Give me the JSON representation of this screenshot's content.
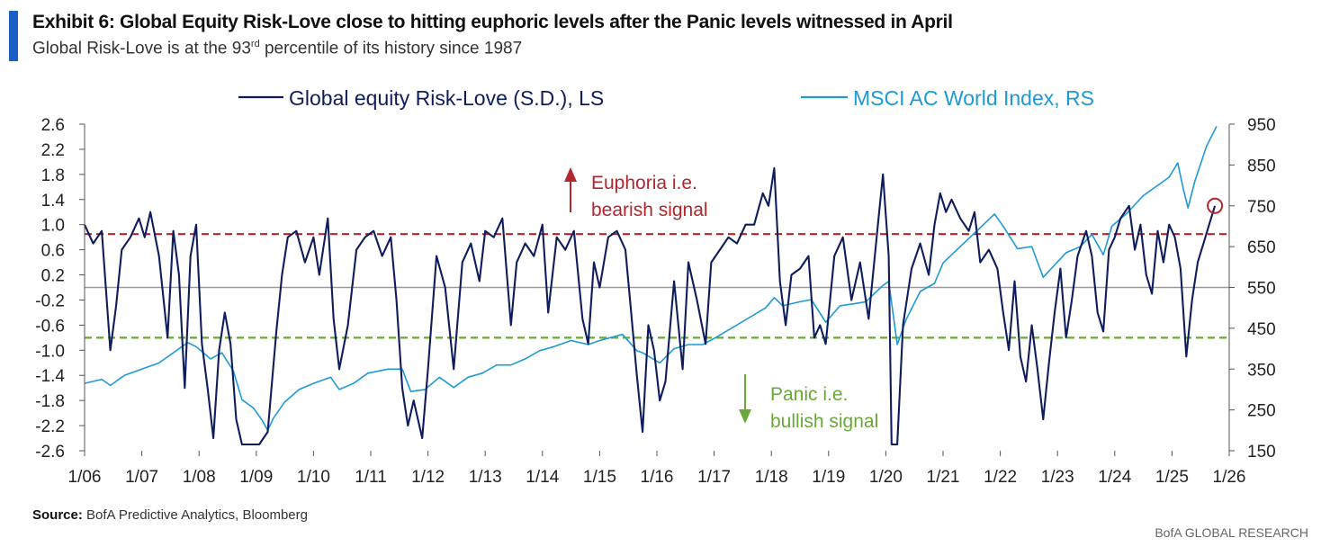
{
  "colors": {
    "accent": "#1a5fc8",
    "riskLove": "#0f1d5c",
    "msci": "#1d9ad6",
    "euphoria": "#b3262c",
    "panic": "#6aa83a",
    "zero": "#9a9a9a"
  },
  "header": {
    "title": "Exhibit 6: Global Equity Risk-Love close to hitting euphoric levels after the Panic levels witnessed in April",
    "subtitle_pre": "Global Risk-Love is at the 93",
    "subtitle_sup": "rd",
    "subtitle_post": " percentile of its history since 1987"
  },
  "footer": {
    "source_label": "Source:",
    "source_text": " BofA Predictive Analytics, Bloomberg",
    "brand": "BofA GLOBAL RESEARCH"
  },
  "chart_data": {
    "type": "line",
    "x_tick_labels": [
      "1/06",
      "1/07",
      "1/08",
      "1/09",
      "1/10",
      "1/11",
      "1/12",
      "1/13",
      "1/14",
      "1/15",
      "1/16",
      "1/17",
      "1/18",
      "1/19",
      "1/20",
      "1/21",
      "1/22",
      "1/23",
      "1/24",
      "1/25",
      "1/26"
    ],
    "x_range": [
      2006.0,
      2026.0
    ],
    "y_left": {
      "range": [
        -2.6,
        2.6
      ],
      "ticks": [
        2.6,
        2.2,
        1.8,
        1.4,
        1.0,
        0.6,
        0.2,
        -0.2,
        -0.6,
        -1.0,
        -1.4,
        -1.8,
        -2.2,
        -2.6
      ],
      "tick_labels": [
        "2.6",
        "2.2",
        "1.8",
        "1.4",
        "1.0",
        "0.6",
        "0.2",
        "-0.2",
        "-0.6",
        "-1.0",
        "-1.4",
        "-1.8",
        "-2.2",
        "-2.6"
      ]
    },
    "y_right": {
      "range": [
        150,
        950
      ],
      "ticks": [
        950,
        850,
        750,
        650,
        550,
        450,
        350,
        250,
        150
      ],
      "tick_labels": [
        "950",
        "850",
        "750",
        "650",
        "550",
        "450",
        "350",
        "250",
        "150"
      ]
    },
    "legend": {
      "placement": "top",
      "items": [
        "Global equity Risk-Love (S.D.), LS",
        "MSCI AC World Index, RS"
      ]
    },
    "reference_lines": [
      {
        "axis": "left",
        "value": 0.0,
        "style": "solid"
      },
      {
        "axis": "left",
        "value": 0.85,
        "style": "dashed",
        "label": "Euphoria"
      },
      {
        "axis": "left",
        "value": -0.8,
        "style": "dashed",
        "label": "Panic"
      }
    ],
    "annotations": {
      "euphoria_line1": "Euphoria  i.e.",
      "euphoria_line2": "bearish signal",
      "panic_line1": "Panic i.e.",
      "panic_line2": "bullish signal"
    },
    "highlight_point": {
      "x": 2025.75,
      "y": 1.3
    },
    "series": [
      {
        "name": "Global equity Risk-Love (S.D.), LS",
        "axis": "left",
        "points": [
          [
            2006.0,
            1.0
          ],
          [
            2006.15,
            0.7
          ],
          [
            2006.3,
            0.9
          ],
          [
            2006.45,
            -1.0
          ],
          [
            2006.55,
            -0.3
          ],
          [
            2006.65,
            0.6
          ],
          [
            2006.8,
            0.8
          ],
          [
            2006.95,
            1.1
          ],
          [
            2007.05,
            0.8
          ],
          [
            2007.15,
            1.2
          ],
          [
            2007.3,
            0.5
          ],
          [
            2007.45,
            -0.8
          ],
          [
            2007.55,
            0.9
          ],
          [
            2007.65,
            0.2
          ],
          [
            2007.75,
            -1.6
          ],
          [
            2007.85,
            0.5
          ],
          [
            2007.95,
            1.0
          ],
          [
            2008.05,
            -0.9
          ],
          [
            2008.15,
            -1.6
          ],
          [
            2008.25,
            -2.4
          ],
          [
            2008.35,
            -1.0
          ],
          [
            2008.45,
            -0.4
          ],
          [
            2008.55,
            -0.9
          ],
          [
            2008.65,
            -2.1
          ],
          [
            2008.75,
            -2.5
          ],
          [
            2008.9,
            -2.5
          ],
          [
            2009.05,
            -2.5
          ],
          [
            2009.2,
            -2.3
          ],
          [
            2009.35,
            -0.7
          ],
          [
            2009.45,
            0.2
          ],
          [
            2009.55,
            0.8
          ],
          [
            2009.7,
            0.9
          ],
          [
            2009.85,
            0.4
          ],
          [
            2010.0,
            0.8
          ],
          [
            2010.1,
            0.2
          ],
          [
            2010.25,
            1.1
          ],
          [
            2010.35,
            -0.5
          ],
          [
            2010.45,
            -1.3
          ],
          [
            2010.6,
            -0.6
          ],
          [
            2010.75,
            0.6
          ],
          [
            2010.9,
            0.8
          ],
          [
            2011.05,
            0.9
          ],
          [
            2011.2,
            0.5
          ],
          [
            2011.35,
            0.8
          ],
          [
            2011.45,
            -0.2
          ],
          [
            2011.55,
            -1.6
          ],
          [
            2011.65,
            -2.2
          ],
          [
            2011.75,
            -1.8
          ],
          [
            2011.9,
            -2.4
          ],
          [
            2012.0,
            -1.3
          ],
          [
            2012.15,
            0.5
          ],
          [
            2012.3,
            0.0
          ],
          [
            2012.45,
            -1.3
          ],
          [
            2012.6,
            0.4
          ],
          [
            2012.75,
            0.7
          ],
          [
            2012.9,
            0.1
          ],
          [
            2013.0,
            0.9
          ],
          [
            2013.15,
            0.8
          ],
          [
            2013.3,
            1.1
          ],
          [
            2013.45,
            -0.6
          ],
          [
            2013.55,
            0.4
          ],
          [
            2013.7,
            0.7
          ],
          [
            2013.85,
            0.5
          ],
          [
            2014.0,
            1.0
          ],
          [
            2014.1,
            -0.4
          ],
          [
            2014.25,
            0.8
          ],
          [
            2014.4,
            0.6
          ],
          [
            2014.55,
            0.9
          ],
          [
            2014.7,
            -0.5
          ],
          [
            2014.8,
            -0.9
          ],
          [
            2014.9,
            0.4
          ],
          [
            2015.0,
            0.0
          ],
          [
            2015.15,
            0.8
          ],
          [
            2015.3,
            0.9
          ],
          [
            2015.45,
            0.6
          ],
          [
            2015.55,
            -0.4
          ],
          [
            2015.65,
            -1.4
          ],
          [
            2015.75,
            -2.3
          ],
          [
            2015.85,
            -0.6
          ],
          [
            2015.95,
            -1.0
          ],
          [
            2016.05,
            -1.8
          ],
          [
            2016.15,
            -1.5
          ],
          [
            2016.3,
            0.1
          ],
          [
            2016.45,
            -1.3
          ],
          [
            2016.55,
            0.4
          ],
          [
            2016.7,
            -0.2
          ],
          [
            2016.85,
            -0.9
          ],
          [
            2016.95,
            0.4
          ],
          [
            2017.1,
            0.6
          ],
          [
            2017.25,
            0.8
          ],
          [
            2017.4,
            0.7
          ],
          [
            2017.55,
            1.0
          ],
          [
            2017.7,
            1.0
          ],
          [
            2017.85,
            1.5
          ],
          [
            2017.95,
            1.3
          ],
          [
            2018.05,
            1.9
          ],
          [
            2018.15,
            0.1
          ],
          [
            2018.25,
            -0.6
          ],
          [
            2018.35,
            0.2
          ],
          [
            2018.5,
            0.3
          ],
          [
            2018.65,
            0.5
          ],
          [
            2018.75,
            -0.8
          ],
          [
            2018.85,
            -0.6
          ],
          [
            2018.95,
            -0.9
          ],
          [
            2019.1,
            0.5
          ],
          [
            2019.25,
            0.8
          ],
          [
            2019.4,
            -0.2
          ],
          [
            2019.55,
            0.4
          ],
          [
            2019.7,
            -0.5
          ],
          [
            2019.85,
            0.9
          ],
          [
            2019.95,
            1.8
          ],
          [
            2020.05,
            0.5
          ],
          [
            2020.1,
            -2.5
          ],
          [
            2020.2,
            -2.5
          ],
          [
            2020.3,
            -0.6
          ],
          [
            2020.45,
            0.3
          ],
          [
            2020.6,
            0.7
          ],
          [
            2020.75,
            0.2
          ],
          [
            2020.85,
            1.0
          ],
          [
            2020.95,
            1.5
          ],
          [
            2021.05,
            1.2
          ],
          [
            2021.15,
            1.4
          ],
          [
            2021.3,
            1.1
          ],
          [
            2021.45,
            0.9
          ],
          [
            2021.55,
            1.2
          ],
          [
            2021.65,
            0.4
          ],
          [
            2021.8,
            0.6
          ],
          [
            2021.95,
            0.3
          ],
          [
            2022.05,
            -0.4
          ],
          [
            2022.15,
            -1.0
          ],
          [
            2022.25,
            0.1
          ],
          [
            2022.35,
            -1.1
          ],
          [
            2022.45,
            -1.5
          ],
          [
            2022.55,
            -0.6
          ],
          [
            2022.65,
            -1.3
          ],
          [
            2022.75,
            -2.1
          ],
          [
            2022.85,
            -1.2
          ],
          [
            2022.95,
            -0.4
          ],
          [
            2023.05,
            0.3
          ],
          [
            2023.15,
            -0.8
          ],
          [
            2023.25,
            -0.2
          ],
          [
            2023.35,
            0.5
          ],
          [
            2023.5,
            0.9
          ],
          [
            2023.6,
            0.5
          ],
          [
            2023.7,
            -0.4
          ],
          [
            2023.8,
            -0.7
          ],
          [
            2023.9,
            0.6
          ],
          [
            2024.0,
            0.8
          ],
          [
            2024.1,
            1.1
          ],
          [
            2024.25,
            1.3
          ],
          [
            2024.35,
            0.6
          ],
          [
            2024.45,
            1.0
          ],
          [
            2024.55,
            0.2
          ],
          [
            2024.65,
            -0.1
          ],
          [
            2024.75,
            0.9
          ],
          [
            2024.85,
            0.4
          ],
          [
            2024.95,
            1.0
          ],
          [
            2025.05,
            0.8
          ],
          [
            2025.15,
            0.3
          ],
          [
            2025.25,
            -1.1
          ],
          [
            2025.35,
            -0.2
          ],
          [
            2025.45,
            0.4
          ],
          [
            2025.55,
            0.7
          ],
          [
            2025.65,
            1.0
          ],
          [
            2025.75,
            1.3
          ]
        ]
      },
      {
        "name": "MSCI AC World Index, RS",
        "axis": "right",
        "points": [
          [
            2006.0,
            315
          ],
          [
            2006.3,
            325
          ],
          [
            2006.45,
            310
          ],
          [
            2006.7,
            335
          ],
          [
            2007.0,
            350
          ],
          [
            2007.3,
            365
          ],
          [
            2007.5,
            385
          ],
          [
            2007.8,
            415
          ],
          [
            2007.95,
            405
          ],
          [
            2008.2,
            375
          ],
          [
            2008.4,
            390
          ],
          [
            2008.6,
            345
          ],
          [
            2008.75,
            275
          ],
          [
            2008.95,
            255
          ],
          [
            2009.1,
            225
          ],
          [
            2009.2,
            200
          ],
          [
            2009.3,
            230
          ],
          [
            2009.5,
            270
          ],
          [
            2009.75,
            300
          ],
          [
            2010.0,
            315
          ],
          [
            2010.3,
            330
          ],
          [
            2010.45,
            300
          ],
          [
            2010.7,
            315
          ],
          [
            2010.95,
            340
          ],
          [
            2011.3,
            350
          ],
          [
            2011.55,
            350
          ],
          [
            2011.7,
            295
          ],
          [
            2011.95,
            300
          ],
          [
            2012.2,
            330
          ],
          [
            2012.45,
            305
          ],
          [
            2012.7,
            330
          ],
          [
            2012.95,
            340
          ],
          [
            2013.2,
            360
          ],
          [
            2013.45,
            360
          ],
          [
            2013.7,
            375
          ],
          [
            2013.95,
            395
          ],
          [
            2014.2,
            405
          ],
          [
            2014.5,
            420
          ],
          [
            2014.8,
            410
          ],
          [
            2015.0,
            420
          ],
          [
            2015.4,
            435
          ],
          [
            2015.65,
            395
          ],
          [
            2015.75,
            390
          ],
          [
            2016.05,
            365
          ],
          [
            2016.3,
            400
          ],
          [
            2016.55,
            410
          ],
          [
            2016.8,
            410
          ],
          [
            2017.0,
            425
          ],
          [
            2017.3,
            450
          ],
          [
            2017.6,
            475
          ],
          [
            2017.9,
            500
          ],
          [
            2018.05,
            525
          ],
          [
            2018.2,
            505
          ],
          [
            2018.5,
            515
          ],
          [
            2018.7,
            520
          ],
          [
            2018.95,
            465
          ],
          [
            2019.2,
            505
          ],
          [
            2019.45,
            510
          ],
          [
            2019.65,
            515
          ],
          [
            2019.95,
            555
          ],
          [
            2020.05,
            565
          ],
          [
            2020.2,
            410
          ],
          [
            2020.35,
            470
          ],
          [
            2020.6,
            540
          ],
          [
            2020.85,
            560
          ],
          [
            2021.0,
            610
          ],
          [
            2021.3,
            650
          ],
          [
            2021.6,
            690
          ],
          [
            2021.9,
            730
          ],
          [
            2022.05,
            700
          ],
          [
            2022.3,
            645
          ],
          [
            2022.55,
            650
          ],
          [
            2022.75,
            575
          ],
          [
            2022.95,
            605
          ],
          [
            2023.15,
            635
          ],
          [
            2023.4,
            650
          ],
          [
            2023.6,
            680
          ],
          [
            2023.8,
            630
          ],
          [
            2023.95,
            700
          ],
          [
            2024.2,
            730
          ],
          [
            2024.5,
            775
          ],
          [
            2024.75,
            800
          ],
          [
            2024.95,
            820
          ],
          [
            2025.1,
            855
          ],
          [
            2025.2,
            790
          ],
          [
            2025.28,
            745
          ],
          [
            2025.4,
            810
          ],
          [
            2025.6,
            895
          ],
          [
            2025.78,
            945
          ]
        ]
      }
    ]
  }
}
